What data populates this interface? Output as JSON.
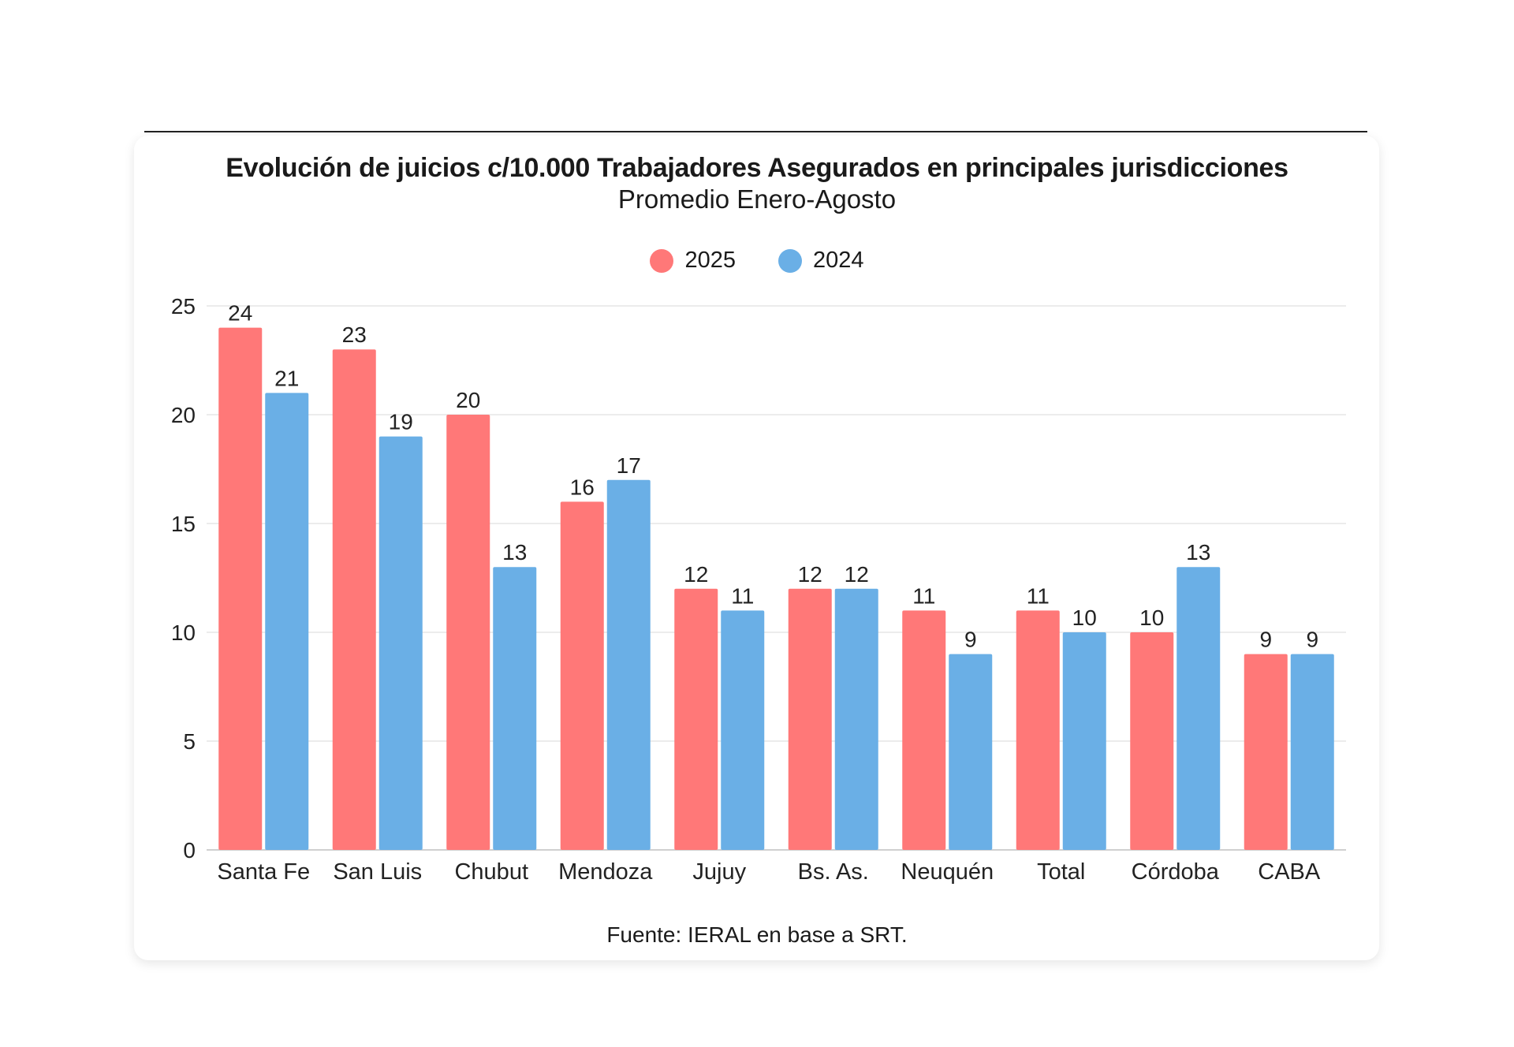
{
  "chart_data": {
    "type": "bar",
    "title": "Evolución de juicios c/10.000 Trabajadores Asegurados en principales jurisdicciones",
    "subtitle": "Promedio Enero-Agosto",
    "categories": [
      "Santa Fe",
      "San Luis",
      "Chubut",
      "Mendoza",
      "Jujuy",
      "Bs. As.",
      "Neuquén",
      "Total",
      "Córdoba",
      "CABA"
    ],
    "series": [
      {
        "name": "2025",
        "color": "#FF7878",
        "values": [
          24,
          23,
          20,
          16,
          12,
          12,
          11,
          11,
          10,
          9
        ]
      },
      {
        "name": "2024",
        "color": "#6AAFE6",
        "values": [
          21,
          19,
          13,
          17,
          11,
          12,
          9,
          10,
          13,
          9
        ]
      }
    ],
    "ylim": [
      0,
      25
    ],
    "yticks": [
      0,
      5,
      10,
      15,
      20,
      25
    ],
    "grid": true,
    "legend_position": "top",
    "source": "Fuente: IERAL en base a SRT."
  }
}
